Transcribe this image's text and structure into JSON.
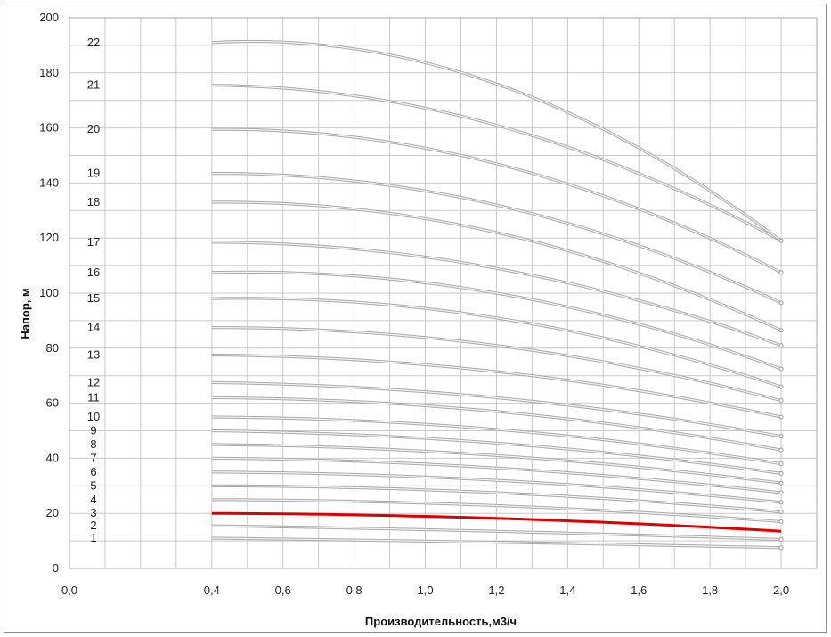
{
  "chart_data": {
    "type": "line",
    "title": "",
    "xlabel": "Производительность,м3/ч",
    "ylabel": "Напор, м",
    "xlim": [
      0.0,
      2.1
    ],
    "ylim": [
      0,
      200
    ],
    "x_ticks": [
      "0,0",
      "0,4",
      "0,6",
      "0,8",
      "1,0",
      "1,2",
      "1,4",
      "1,6",
      "1,8",
      "2,0"
    ],
    "y_ticks": [
      "0",
      "20",
      "40",
      "60",
      "80",
      "100",
      "120",
      "140",
      "160",
      "180",
      "200"
    ],
    "grid": true,
    "legend": "none",
    "highlight_color": "#e00000",
    "curve_color": "#c8c8c8",
    "series": [
      {
        "label": "1",
        "x": [
          0.4,
          1.2,
          2.0
        ],
        "y": [
          11,
          9.5,
          7.5
        ]
      },
      {
        "label": "2",
        "x": [
          0.4,
          1.2,
          2.0
        ],
        "y": [
          15.5,
          13.5,
          10.5
        ]
      },
      {
        "label": "3",
        "x": [
          0.4,
          1.2,
          2.0
        ],
        "y": [
          20,
          18.2,
          13.5
        ],
        "highlight": true
      },
      {
        "label": "4",
        "x": [
          0.4,
          1.2,
          2.0
        ],
        "y": [
          25,
          22.8,
          17
        ]
      },
      {
        "label": "5",
        "x": [
          0.4,
          1.2,
          2.0
        ],
        "y": [
          30,
          27.5,
          20.5
        ]
      },
      {
        "label": "6",
        "x": [
          0.4,
          1.2,
          2.0
        ],
        "y": [
          35,
          32,
          24
        ]
      },
      {
        "label": "7",
        "x": [
          0.4,
          1.2,
          2.0
        ],
        "y": [
          40,
          36.5,
          27.5
        ]
      },
      {
        "label": "8",
        "x": [
          0.4,
          1.2,
          2.0
        ],
        "y": [
          45,
          41,
          31
        ]
      },
      {
        "label": "9",
        "x": [
          0.4,
          1.2,
          2.0
        ],
        "y": [
          50,
          45.5,
          34.5
        ]
      },
      {
        "label": "10",
        "x": [
          0.4,
          1.2,
          2.0
        ],
        "y": [
          55,
          50.5,
          38
        ]
      },
      {
        "label": "11",
        "x": [
          0.4,
          1.2,
          2.0
        ],
        "y": [
          62,
          57,
          43
        ]
      },
      {
        "label": "12",
        "x": [
          0.4,
          1.2,
          2.0
        ],
        "y": [
          67.5,
          62,
          48
        ]
      },
      {
        "label": "13",
        "x": [
          0.4,
          1.2,
          2.0
        ],
        "y": [
          77.5,
          71.5,
          55
        ]
      },
      {
        "label": "14",
        "x": [
          0.4,
          1.2,
          2.0
        ],
        "y": [
          87.5,
          81,
          61
        ]
      },
      {
        "label": "15",
        "x": [
          0.4,
          1.2,
          2.0
        ],
        "y": [
          98,
          91,
          66
        ]
      },
      {
        "label": "16",
        "x": [
          0.4,
          1.2,
          2.0
        ],
        "y": [
          107.5,
          100,
          72.5
        ]
      },
      {
        "label": "17",
        "x": [
          0.4,
          1.2,
          2.0
        ],
        "y": [
          118.5,
          109,
          81
        ]
      },
      {
        "label": "18",
        "x": [
          0.4,
          1.2,
          2.0
        ],
        "y": [
          133,
          122,
          86.5
        ]
      },
      {
        "label": "19",
        "x": [
          0.4,
          1.2,
          2.0
        ],
        "y": [
          143.5,
          132,
          96.5
        ]
      },
      {
        "label": "20",
        "x": [
          0.4,
          1.2,
          2.0
        ],
        "y": [
          159.5,
          147,
          107.5
        ]
      },
      {
        "label": "21",
        "x": [
          0.4,
          1.2,
          2.0
        ],
        "y": [
          175.5,
          161,
          119
        ]
      },
      {
        "label": "22",
        "x": [
          0.4,
          1.2,
          2.0
        ],
        "y": [
          191,
          176,
          119
        ]
      }
    ]
  }
}
